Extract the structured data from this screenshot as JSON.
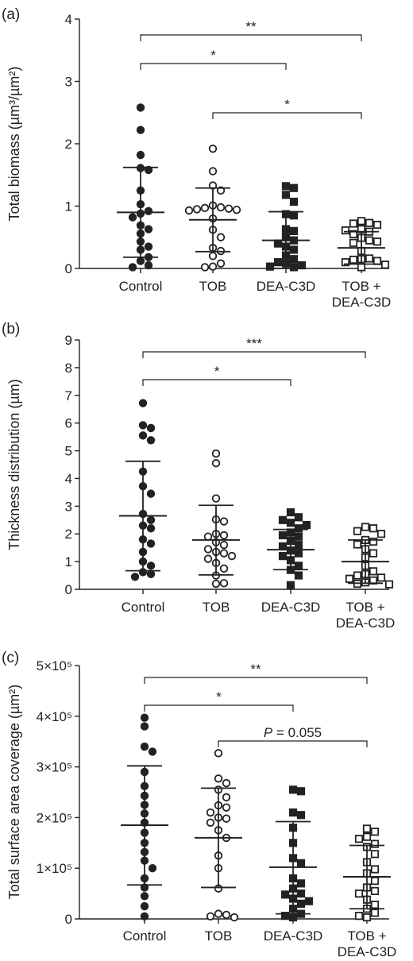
{
  "chart_data": [
    {
      "panel_label": "(a)",
      "type": "scatter",
      "ylabel": "Total biomass (µm³/µm²)",
      "ylim": [
        0,
        4
      ],
      "yticks": [
        "0",
        "1",
        "2",
        "3",
        "4"
      ],
      "ytick_values": [
        0,
        1,
        2,
        3,
        4
      ],
      "categories": [
        {
          "label": "Control",
          "label2": ""
        },
        {
          "label": "TOB",
          "label2": ""
        },
        {
          "label": "DEA-C3D",
          "label2": ""
        },
        {
          "label": "TOB +",
          "label2": "DEA-C3D"
        }
      ],
      "series": [
        {
          "marker": "filled-circle",
          "values": [
            2.58,
            2.22,
            1.82,
            1.61,
            1.58,
            1.25,
            1.03,
            0.92,
            0.88,
            0.82,
            0.69,
            0.63,
            0.56,
            0.43,
            0.35,
            0.3,
            0.18,
            0.12,
            0.05,
            0.02
          ],
          "mean": 0.9,
          "sd_upper": 1.62,
          "sd_lower": 0.18
        },
        {
          "marker": "open-circle",
          "values": [
            1.92,
            1.56,
            1.33,
            1.25,
            1.01,
            0.98,
            0.97,
            0.96,
            0.95,
            0.94,
            0.93,
            0.8,
            0.62,
            0.5,
            0.33,
            0.28,
            0.2,
            0.08,
            0.03,
            0.02
          ],
          "mean": 0.78,
          "sd_upper": 1.29,
          "sd_lower": 0.27
        },
        {
          "marker": "filled-square",
          "values": [
            1.32,
            1.29,
            1.18,
            1.07,
            0.87,
            0.85,
            0.63,
            0.6,
            0.5,
            0.45,
            0.4,
            0.35,
            0.3,
            0.21,
            0.15,
            0.1,
            0.08,
            0.05,
            0.03,
            0.02
          ],
          "mean": 0.45,
          "sd_upper": 0.91,
          "sd_lower": 0.0
        },
        {
          "marker": "open-square",
          "values": [
            0.76,
            0.73,
            0.72,
            0.7,
            0.63,
            0.61,
            0.59,
            0.55,
            0.49,
            0.45,
            0.43,
            0.41,
            0.28,
            0.16,
            0.15,
            0.14,
            0.12,
            0.1,
            0.06,
            0.02
          ],
          "mean": 0.33,
          "sd_upper": 0.59,
          "sd_lower": 0.07
        }
      ],
      "annotations": [
        {
          "from": 0,
          "to": 3,
          "text": "**"
        },
        {
          "from": 0,
          "to": 2,
          "text": "*"
        },
        {
          "from": 1,
          "to": 3,
          "text": "*"
        }
      ]
    },
    {
      "panel_label": "(b)",
      "type": "scatter",
      "ylabel": "Thickness distribution (µm)",
      "ylim": [
        0,
        9
      ],
      "yticks": [
        "0",
        "1",
        "2",
        "3",
        "4",
        "5",
        "6",
        "7",
        "8",
        "9"
      ],
      "ytick_values": [
        0,
        1,
        2,
        3,
        4,
        5,
        6,
        7,
        8,
        9
      ],
      "categories": [
        {
          "label": "Control",
          "label2": ""
        },
        {
          "label": "TOB",
          "label2": ""
        },
        {
          "label": "DEA-C3D",
          "label2": ""
        },
        {
          "label": "TOB +",
          "label2": "DEA-C3D"
        }
      ],
      "series": [
        {
          "marker": "filled-circle",
          "values": [
            6.72,
            5.92,
            5.82,
            5.55,
            5.38,
            4.25,
            3.72,
            3.45,
            2.72,
            2.5,
            2.3,
            2.2,
            1.8,
            1.65,
            1.35,
            1.0,
            0.85,
            0.62,
            0.55,
            0.45
          ],
          "mean": 2.65,
          "sd_upper": 4.62,
          "sd_lower": 0.67
        },
        {
          "marker": "open-circle",
          "values": [
            4.9,
            4.55,
            3.28,
            2.52,
            2.45,
            2.0,
            1.95,
            1.9,
            1.7,
            1.6,
            1.45,
            1.35,
            1.3,
            1.2,
            1.1,
            0.95,
            0.75,
            0.5,
            0.22,
            0.2
          ],
          "mean": 1.78,
          "sd_upper": 3.03,
          "sd_lower": 0.52
        },
        {
          "marker": "filled-square",
          "values": [
            2.78,
            2.6,
            2.5,
            2.4,
            2.32,
            2.2,
            2.05,
            1.95,
            1.9,
            1.75,
            1.6,
            1.55,
            1.4,
            1.3,
            1.2,
            1.05,
            0.85,
            0.7,
            0.5,
            0.15
          ],
          "mean": 1.43,
          "sd_upper": 2.16,
          "sd_lower": 0.71
        },
        {
          "marker": "open-square",
          "values": [
            2.25,
            2.2,
            2.1,
            2.0,
            1.78,
            1.72,
            1.62,
            1.45,
            1.3,
            1.15,
            0.85,
            0.65,
            0.55,
            0.5,
            0.42,
            0.38,
            0.32,
            0.25,
            0.2,
            0.18
          ],
          "mean": 1.0,
          "sd_upper": 1.78,
          "sd_lower": 0.22
        }
      ],
      "annotations": [
        {
          "from": 0,
          "to": 3,
          "text": "***"
        },
        {
          "from": 0,
          "to": 2,
          "text": "*"
        }
      ]
    },
    {
      "panel_label": "(c)",
      "type": "scatter",
      "ylabel": "Total surface area coverage (µm²)",
      "ylim": [
        0,
        500000
      ],
      "yticks": [
        "0",
        "1×10⁵",
        "2×10⁵",
        "3×10⁵",
        "4×10⁵",
        "5×10⁵"
      ],
      "ytick_values": [
        0,
        100000,
        200000,
        300000,
        400000,
        500000
      ],
      "categories": [
        {
          "label": "Control",
          "label2": ""
        },
        {
          "label": "TOB",
          "label2": ""
        },
        {
          "label": "DEA-C3D",
          "label2": ""
        },
        {
          "label": "TOB +",
          "label2": "DEA-C3D"
        }
      ],
      "series": [
        {
          "marker": "filled-circle",
          "values": [
            397000,
            380000,
            340000,
            330000,
            290000,
            262000,
            243000,
            225000,
            208000,
            190000,
            170000,
            150000,
            132000,
            115000,
            100000,
            80000,
            62000,
            45000,
            25000,
            5000
          ],
          "mean": 185000,
          "sd_upper": 302000,
          "sd_lower": 67000
        },
        {
          "marker": "open-circle",
          "values": [
            327000,
            277000,
            268000,
            255000,
            240000,
            224000,
            220000,
            210000,
            200000,
            198000,
            190000,
            175000,
            160000,
            125000,
            100000,
            60000,
            10000,
            8000,
            5000,
            3000
          ],
          "mean": 160000,
          "sd_upper": 258000,
          "sd_lower": 62000
        },
        {
          "marker": "filled-square",
          "values": [
            255000,
            252000,
            210000,
            205000,
            180000,
            150000,
            120000,
            110000,
            80000,
            70000,
            60000,
            50000,
            48000,
            40000,
            35000,
            30000,
            20000,
            10000,
            6000,
            3000
          ],
          "mean": 102000,
          "sd_upper": 192000,
          "sd_lower": 10000
        },
        {
          "marker": "open-square",
          "values": [
            178000,
            172000,
            162000,
            158000,
            148000,
            142000,
            128000,
            112000,
            98000,
            90000,
            75000,
            62000,
            55000,
            50000,
            38000,
            28000,
            20000,
            12000,
            6000,
            3000
          ],
          "mean": 83000,
          "sd_upper": 145000,
          "sd_lower": 20000
        }
      ],
      "annotations": [
        {
          "from": 0,
          "to": 3,
          "text": "**"
        },
        {
          "from": 0,
          "to": 2,
          "text": "*"
        },
        {
          "from": 1,
          "to": 3,
          "text": "P = 0.055",
          "italic_lead": "P"
        }
      ]
    }
  ]
}
